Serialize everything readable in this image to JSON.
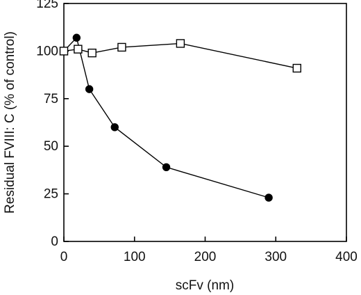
{
  "chart_data": {
    "type": "line",
    "xlabel": "scFv (nm)",
    "ylabel": "Residual FVIII: C (% of control)",
    "xlim": [
      0,
      400
    ],
    "ylim": [
      0,
      125
    ],
    "xticks": [
      0,
      100,
      200,
      300,
      400
    ],
    "yticks": [
      0,
      25,
      50,
      75,
      100,
      125
    ],
    "xtick_labels": [
      "0",
      "100",
      "200",
      "300",
      "400"
    ],
    "ytick_labels": [
      "0",
      "25",
      "50",
      "75",
      "100",
      "125"
    ],
    "grid": false,
    "legend": "none",
    "series": [
      {
        "marker": "filled-circle",
        "color": "#000000",
        "x": [
          0,
          18,
          36,
          72,
          145,
          290
        ],
        "y": [
          100,
          107,
          80,
          60,
          39,
          23
        ]
      },
      {
        "marker": "open-square",
        "color": "#000000",
        "x": [
          0,
          20,
          40,
          82,
          165,
          330
        ],
        "y": [
          100,
          101,
          99,
          102,
          104,
          91
        ]
      }
    ]
  }
}
